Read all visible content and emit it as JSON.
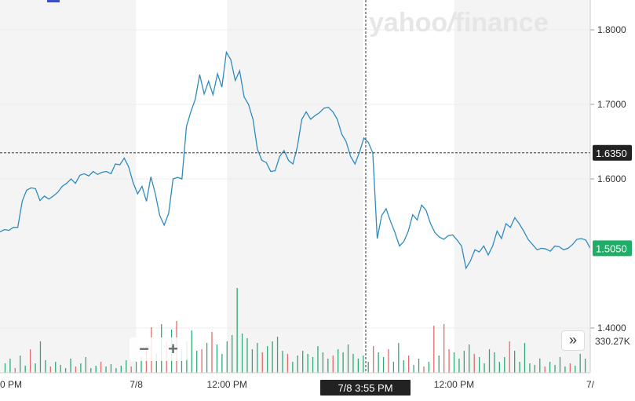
{
  "watermark": {
    "text_a": "yahoo",
    "slash": "/",
    "text_b": "finance"
  },
  "zoom": {
    "minus": "−",
    "plus": "+"
  },
  "nav": {
    "next_label": "»"
  },
  "colors": {
    "line": "#2e8bc0",
    "up": "#2faa74",
    "down": "#e36b6b",
    "current_badge": "#1eae67",
    "crosshair_badge": "#222222",
    "shade": "#f4f4f4"
  },
  "crosshair": {
    "price_label": "1.6350",
    "time_label": "7/8 3:55 PM"
  },
  "current_price": {
    "label": "1.5050"
  },
  "volume_label": "330.27K",
  "chart_data": {
    "type": "line",
    "title": "",
    "xlabel": "",
    "ylabel": "",
    "ylim": [
      1.34,
      1.84
    ],
    "x_tick_labels": [
      {
        "label": "0 PM",
        "x": 0
      },
      {
        "label": "7/8",
        "x": 27
      },
      {
        "label": "12:00 PM",
        "x": 45
      },
      {
        "label": "12:00 PM",
        "x": 90
      },
      {
        "label": "7/",
        "x": 117
      }
    ],
    "y_ticks": [
      {
        "label": "1.8000",
        "value": 1.8
      },
      {
        "label": "1.7000",
        "value": 1.7
      },
      {
        "label": "1.6000",
        "value": 1.6
      },
      {
        "label": "1.4000",
        "value": 1.4
      }
    ],
    "x_range": [
      0,
      117
    ],
    "shaded_ranges": [
      [
        0,
        27
      ],
      [
        45,
        72
      ],
      [
        90,
        117
      ]
    ],
    "crosshair_x": 72.5,
    "crosshair_y": 1.635,
    "price": [
      1.529,
      1.532,
      1.531,
      1.535,
      1.535,
      1.57,
      1.585,
      1.588,
      1.587,
      1.571,
      1.577,
      1.573,
      1.577,
      1.582,
      1.59,
      1.594,
      1.6,
      1.594,
      1.605,
      1.607,
      1.604,
      1.61,
      1.606,
      1.609,
      1.61,
      1.607,
      1.62,
      1.619,
      1.628,
      1.616,
      1.595,
      1.58,
      1.59,
      1.57,
      1.603,
      1.58,
      1.551,
      1.538,
      1.554,
      1.6,
      1.602,
      1.6,
      1.67,
      1.69,
      1.707,
      1.74,
      1.714,
      1.731,
      1.713,
      1.741,
      1.723,
      1.77,
      1.76,
      1.732,
      1.745,
      1.71,
      1.7,
      1.68,
      1.64,
      1.625,
      1.622,
      1.61,
      1.611,
      1.63,
      1.638,
      1.625,
      1.62,
      1.643,
      1.68,
      1.69,
      1.68,
      1.685,
      1.689,
      1.695,
      1.696,
      1.69,
      1.68,
      1.66,
      1.65,
      1.63,
      1.62,
      1.636,
      1.655,
      1.649,
      1.635,
      1.52,
      1.551,
      1.56,
      1.543,
      1.528,
      1.51,
      1.516,
      1.53,
      1.552,
      1.545,
      1.565,
      1.558,
      1.54,
      1.528,
      1.522,
      1.519,
      1.524,
      1.525,
      1.518,
      1.51,
      1.48,
      1.49,
      1.505,
      1.502,
      1.51,
      1.498,
      1.51,
      1.53,
      1.52,
      1.54,
      1.535,
      1.548,
      1.54,
      1.53,
      1.519,
      1.512,
      1.505,
      1.507,
      1.506,
      1.503,
      1.51,
      1.509,
      1.505,
      1.507,
      1.512,
      1.519,
      1.52,
      1.518,
      1.507
    ],
    "volume": [
      {
        "x": 1,
        "v": 12,
        "d": "up"
      },
      {
        "x": 2,
        "v": 18,
        "d": "up"
      },
      {
        "x": 3,
        "v": 6,
        "d": "down"
      },
      {
        "x": 4,
        "v": 22,
        "d": "up"
      },
      {
        "x": 5,
        "v": 9,
        "d": "up"
      },
      {
        "x": 6,
        "v": 30,
        "d": "down"
      },
      {
        "x": 7,
        "v": 12,
        "d": "up"
      },
      {
        "x": 8,
        "v": 40,
        "d": "up"
      },
      {
        "x": 9,
        "v": 16,
        "d": "up"
      },
      {
        "x": 10,
        "v": 8,
        "d": "down"
      },
      {
        "x": 11,
        "v": 14,
        "d": "up"
      },
      {
        "x": 12,
        "v": 10,
        "d": "up"
      },
      {
        "x": 13,
        "v": 6,
        "d": "up"
      },
      {
        "x": 14,
        "v": 18,
        "d": "up"
      },
      {
        "x": 15,
        "v": 8,
        "d": "down"
      },
      {
        "x": 16,
        "v": 12,
        "d": "up"
      },
      {
        "x": 17,
        "v": 20,
        "d": "up"
      },
      {
        "x": 18,
        "v": 6,
        "d": "up"
      },
      {
        "x": 19,
        "v": 9,
        "d": "up"
      },
      {
        "x": 20,
        "v": 14,
        "d": "down"
      },
      {
        "x": 21,
        "v": 8,
        "d": "up"
      },
      {
        "x": 22,
        "v": 11,
        "d": "up"
      },
      {
        "x": 23,
        "v": 6,
        "d": "up"
      },
      {
        "x": 24,
        "v": 9,
        "d": "up"
      },
      {
        "x": 25,
        "v": 16,
        "d": "up"
      },
      {
        "x": 26,
        "v": 8,
        "d": "down"
      },
      {
        "x": 27,
        "v": 14,
        "d": "up"
      },
      {
        "x": 28,
        "v": 20,
        "d": "up"
      },
      {
        "x": 29,
        "v": 34,
        "d": "down"
      },
      {
        "x": 30,
        "v": 58,
        "d": "down"
      },
      {
        "x": 31,
        "v": 24,
        "d": "up"
      },
      {
        "x": 32,
        "v": 62,
        "d": "up"
      },
      {
        "x": 33,
        "v": 40,
        "d": "down"
      },
      {
        "x": 34,
        "v": 55,
        "d": "up"
      },
      {
        "x": 35,
        "v": 66,
        "d": "down"
      },
      {
        "x": 36,
        "v": 30,
        "d": "up"
      },
      {
        "x": 37,
        "v": 40,
        "d": "up"
      },
      {
        "x": 38,
        "v": 54,
        "d": "up"
      },
      {
        "x": 39,
        "v": 28,
        "d": "up"
      },
      {
        "x": 40,
        "v": 30,
        "d": "down"
      },
      {
        "x": 41,
        "v": 38,
        "d": "up"
      },
      {
        "x": 42,
        "v": 52,
        "d": "down"
      },
      {
        "x": 43,
        "v": 36,
        "d": "up"
      },
      {
        "x": 44,
        "v": 24,
        "d": "up"
      },
      {
        "x": 45,
        "v": 40,
        "d": "up"
      },
      {
        "x": 46,
        "v": 48,
        "d": "up"
      },
      {
        "x": 47,
        "v": 108,
        "d": "up"
      },
      {
        "x": 48,
        "v": 50,
        "d": "up"
      },
      {
        "x": 49,
        "v": 44,
        "d": "up"
      },
      {
        "x": 50,
        "v": 30,
        "d": "up"
      },
      {
        "x": 51,
        "v": 38,
        "d": "up"
      },
      {
        "x": 52,
        "v": 26,
        "d": "down"
      },
      {
        "x": 53,
        "v": 34,
        "d": "up"
      },
      {
        "x": 54,
        "v": 40,
        "d": "up"
      },
      {
        "x": 55,
        "v": 46,
        "d": "up"
      },
      {
        "x": 56,
        "v": 28,
        "d": "up"
      },
      {
        "x": 57,
        "v": 24,
        "d": "down"
      },
      {
        "x": 58,
        "v": 14,
        "d": "up"
      },
      {
        "x": 59,
        "v": 22,
        "d": "up"
      },
      {
        "x": 60,
        "v": 28,
        "d": "up"
      },
      {
        "x": 61,
        "v": 24,
        "d": "up"
      },
      {
        "x": 62,
        "v": 20,
        "d": "up"
      },
      {
        "x": 63,
        "v": 34,
        "d": "up"
      },
      {
        "x": 64,
        "v": 26,
        "d": "up"
      },
      {
        "x": 65,
        "v": 18,
        "d": "up"
      },
      {
        "x": 66,
        "v": 22,
        "d": "down"
      },
      {
        "x": 67,
        "v": 30,
        "d": "up"
      },
      {
        "x": 68,
        "v": 26,
        "d": "up"
      },
      {
        "x": 69,
        "v": 36,
        "d": "up"
      },
      {
        "x": 70,
        "v": 24,
        "d": "up"
      },
      {
        "x": 71,
        "v": 18,
        "d": "up"
      },
      {
        "x": 72,
        "v": 22,
        "d": "up"
      },
      {
        "x": 73,
        "v": 14,
        "d": "up"
      },
      {
        "x": 74,
        "v": 34,
        "d": "down"
      },
      {
        "x": 75,
        "v": 26,
        "d": "up"
      },
      {
        "x": 76,
        "v": 20,
        "d": "up"
      },
      {
        "x": 77,
        "v": 30,
        "d": "down"
      },
      {
        "x": 78,
        "v": 14,
        "d": "up"
      },
      {
        "x": 79,
        "v": 38,
        "d": "up"
      },
      {
        "x": 80,
        "v": 16,
        "d": "up"
      },
      {
        "x": 81,
        "v": 22,
        "d": "down"
      },
      {
        "x": 82,
        "v": 10,
        "d": "up"
      },
      {
        "x": 83,
        "v": 18,
        "d": "up"
      },
      {
        "x": 84,
        "v": 8,
        "d": "down"
      },
      {
        "x": 85,
        "v": 14,
        "d": "up"
      },
      {
        "x": 86,
        "v": 60,
        "d": "down"
      },
      {
        "x": 87,
        "v": 22,
        "d": "up"
      },
      {
        "x": 88,
        "v": 62,
        "d": "down"
      },
      {
        "x": 89,
        "v": 30,
        "d": "down"
      },
      {
        "x": 90,
        "v": 26,
        "d": "up"
      },
      {
        "x": 91,
        "v": 18,
        "d": "up"
      },
      {
        "x": 92,
        "v": 28,
        "d": "up"
      },
      {
        "x": 93,
        "v": 36,
        "d": "up"
      },
      {
        "x": 94,
        "v": 24,
        "d": "down"
      },
      {
        "x": 95,
        "v": 20,
        "d": "up"
      },
      {
        "x": 96,
        "v": 12,
        "d": "up"
      },
      {
        "x": 97,
        "v": 30,
        "d": "up"
      },
      {
        "x": 98,
        "v": 26,
        "d": "up"
      },
      {
        "x": 99,
        "v": 14,
        "d": "up"
      },
      {
        "x": 100,
        "v": 20,
        "d": "up"
      },
      {
        "x": 101,
        "v": 40,
        "d": "down"
      },
      {
        "x": 102,
        "v": 28,
        "d": "up"
      },
      {
        "x": 103,
        "v": 14,
        "d": "up"
      },
      {
        "x": 104,
        "v": 38,
        "d": "up"
      },
      {
        "x": 105,
        "v": 12,
        "d": "up"
      },
      {
        "x": 106,
        "v": 10,
        "d": "up"
      },
      {
        "x": 107,
        "v": 18,
        "d": "up"
      },
      {
        "x": 108,
        "v": 8,
        "d": "down"
      },
      {
        "x": 109,
        "v": 14,
        "d": "up"
      },
      {
        "x": 110,
        "v": 10,
        "d": "up"
      },
      {
        "x": 111,
        "v": 20,
        "d": "up"
      },
      {
        "x": 112,
        "v": 8,
        "d": "up"
      },
      {
        "x": 113,
        "v": 12,
        "d": "down"
      },
      {
        "x": 114,
        "v": 9,
        "d": "up"
      },
      {
        "x": 115,
        "v": 24,
        "d": "up"
      },
      {
        "x": 116,
        "v": 18,
        "d": "up"
      }
    ]
  }
}
